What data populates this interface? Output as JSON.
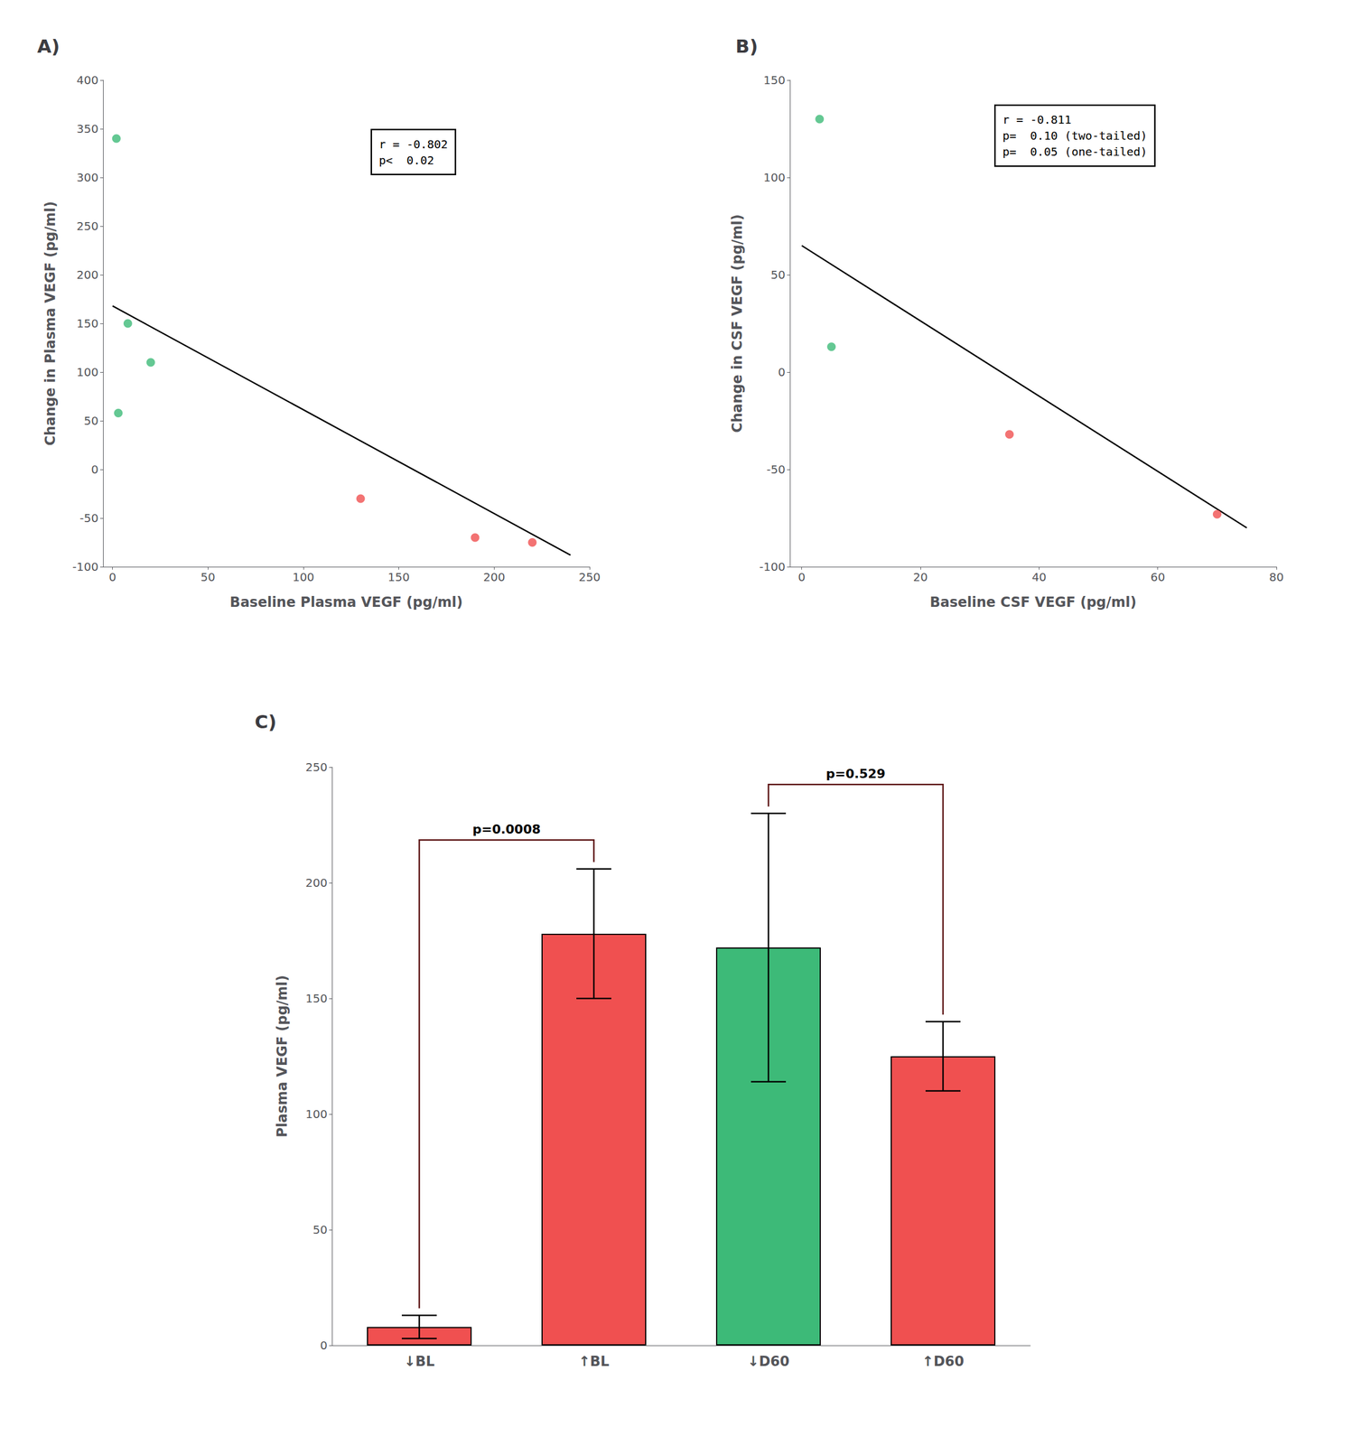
{
  "chart_data": [
    {
      "type": "scatter",
      "title": "A)",
      "xlabel": "Baseline Plasma VEGF (pg/ml)",
      "ylabel": "Change in Plasma VEGF (pg/ml)",
      "xlim": [
        -5,
        250
      ],
      "ylim": [
        -100,
        400
      ],
      "xticks": [
        0,
        50,
        100,
        150,
        200,
        250
      ],
      "yticks": [
        -100,
        -50,
        0,
        50,
        100,
        150,
        200,
        250,
        300,
        350,
        400
      ],
      "grid": false,
      "annotation": "r = -0.802\np<  0.02",
      "series": [
        {
          "type": "scatter",
          "color": "#3dba78",
          "x": [
            2,
            8,
            20,
            3
          ],
          "values": [
            340,
            150,
            110,
            58
          ]
        },
        {
          "type": "scatter",
          "color": "#f05050",
          "x": [
            130,
            190,
            220
          ],
          "values": [
            -30,
            -70,
            -75
          ]
        },
        {
          "type": "line",
          "color": "black",
          "x": [
            0,
            240
          ],
          "values": [
            168,
            -88
          ]
        }
      ]
    },
    {
      "type": "scatter",
      "title": "B)",
      "xlabel": "Baseline CSF VEGF (pg/ml)",
      "ylabel": "Change in CSF VEGF (pg/ml)",
      "xlim": [
        -2,
        80
      ],
      "ylim": [
        -100,
        150
      ],
      "xticks": [
        0,
        20,
        40,
        60,
        80
      ],
      "yticks": [
        -100,
        -50,
        0,
        50,
        100,
        150
      ],
      "grid": false,
      "annotation": "r = -0.811\np=  0.10 (two-tailed)\np=  0.05 (one-tailed)",
      "series": [
        {
          "type": "scatter",
          "color": "#3dba78",
          "x": [
            3,
            5
          ],
          "values": [
            130,
            13
          ]
        },
        {
          "type": "scatter",
          "color": "#f05050",
          "x": [
            35,
            70
          ],
          "values": [
            -32,
            -73
          ]
        },
        {
          "type": "line",
          "color": "black",
          "x": [
            0,
            75
          ],
          "values": [
            65,
            -80
          ]
        }
      ]
    },
    {
      "type": "bar",
      "title": "C)",
      "categories": [
        "↓BL",
        "↑BL",
        "↓D60",
        "↑D60"
      ],
      "values": [
        8,
        178,
        172,
        125
      ],
      "errors": [
        5,
        28,
        58,
        15
      ],
      "colors": [
        "#f05050",
        "#f05050",
        "#3dba78",
        "#f05050"
      ],
      "ylabel": "Plasma VEGF (pg/ml)",
      "ylim": [
        0,
        250
      ],
      "yticks": [
        0,
        50,
        100,
        150,
        200,
        250
      ],
      "grid": false,
      "annotations": [
        {
          "text": "p=0.0008",
          "between": [
            "↓BL",
            "↑BL"
          ],
          "color": "#5a1010"
        },
        {
          "text": "p=0.529",
          "between": [
            "↓D60",
            "↑D60"
          ],
          "color": "#5a1010"
        }
      ]
    }
  ]
}
